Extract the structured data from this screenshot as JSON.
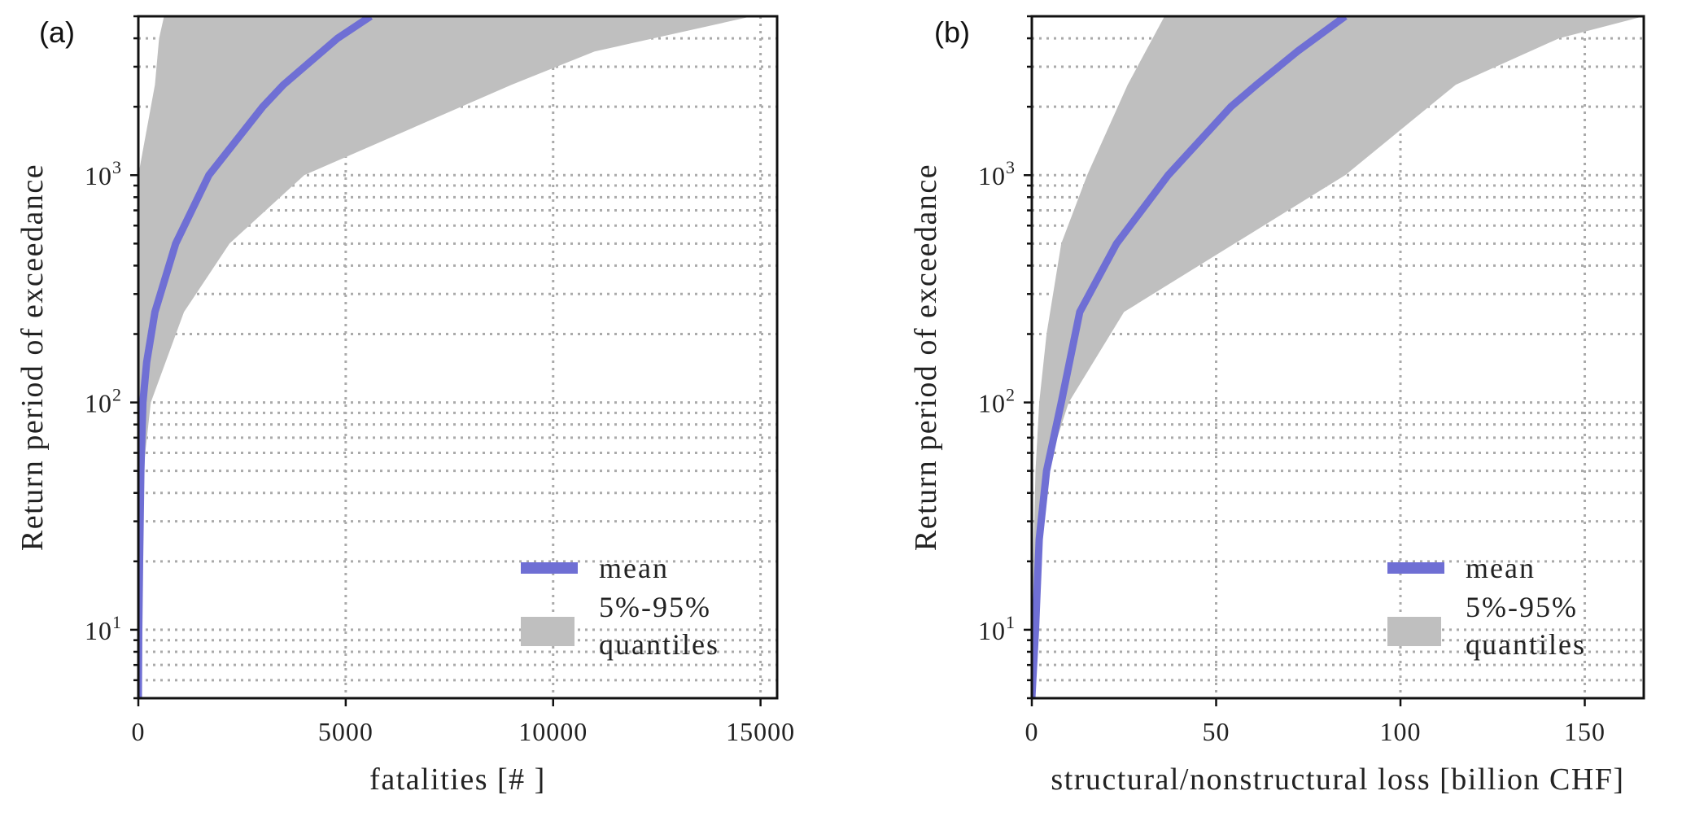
{
  "chart_data": [
    {
      "type": "line",
      "panel_label": "(a)",
      "xlabel": "fatalities [# ]",
      "ylabel": "Return period of exceedance",
      "xlim": [
        0,
        15400
      ],
      "ylim": [
        5,
        5000
      ],
      "yscale": "log",
      "grid": true,
      "x_ticks": [
        0,
        5000,
        10000,
        15000
      ],
      "x_tick_labels": [
        "0",
        "5000",
        "10000",
        "15000"
      ],
      "y_ticks": [
        10,
        100,
        1000
      ],
      "y_tick_base": "10",
      "y_tick_exponents": [
        "1",
        "2",
        "3"
      ],
      "legend_position": "lower-right",
      "series": [
        {
          "name": "mean",
          "color": "#6f6fd4",
          "x": [
            0,
            10,
            30,
            60,
            110,
            200,
            400,
            900,
            1700,
            3000,
            3500,
            4800,
            5600
          ],
          "y": [
            5,
            10,
            20,
            50,
            100,
            150,
            250,
            500,
            1000,
            2000,
            2500,
            4000,
            5000
          ]
        }
      ],
      "band": {
        "name": "5%-95% quantiles",
        "line1": "5%-95%",
        "line2": "quantiles",
        "color": "#bfbfbf",
        "upper": [
          [
            0,
            5
          ],
          [
            0,
            10
          ],
          [
            0,
            50
          ],
          [
            0,
            100
          ],
          [
            0,
            200
          ],
          [
            0,
            500
          ],
          [
            0,
            1000
          ],
          [
            400,
            2500
          ],
          [
            500,
            4000
          ],
          [
            620,
            5000
          ]
        ],
        "lower": [
          [
            0,
            5
          ],
          [
            40,
            10
          ],
          [
            120,
            50
          ],
          [
            300,
            100
          ],
          [
            1100,
            250
          ],
          [
            2200,
            500
          ],
          [
            4000,
            1000
          ],
          [
            9000,
            2500
          ],
          [
            11000,
            3500
          ],
          [
            14800,
            5000
          ]
        ]
      }
    },
    {
      "type": "line",
      "panel_label": "(b)",
      "xlabel": "structural/nonstructural loss [billion CHF]",
      "ylabel": "Return period of exceedance",
      "xlim": [
        0,
        166
      ],
      "ylim": [
        5,
        5000
      ],
      "yscale": "log",
      "grid": true,
      "x_ticks": [
        0,
        50,
        100,
        150
      ],
      "x_tick_labels": [
        "0",
        "50",
        "100",
        "150"
      ],
      "y_ticks": [
        10,
        100,
        1000
      ],
      "y_tick_base": "10",
      "y_tick_exponents": [
        "1",
        "2",
        "3"
      ],
      "legend_position": "lower-right",
      "series": [
        {
          "name": "mean",
          "color": "#6f6fd4",
          "x": [
            0,
            1,
            2,
            4,
            8,
            13,
            23,
            37,
            54,
            61,
            72,
            85
          ],
          "y": [
            5,
            10,
            25,
            50,
            100,
            250,
            500,
            1000,
            2000,
            2500,
            3500,
            5000
          ]
        }
      ],
      "band": {
        "name": "5%-95% quantiles",
        "line1": "5%-95%",
        "line2": "quantiles",
        "color": "#bfbfbf",
        "upper": [
          [
            0,
            5
          ],
          [
            0,
            10
          ],
          [
            1,
            50
          ],
          [
            2,
            100
          ],
          [
            4,
            200
          ],
          [
            8,
            500
          ],
          [
            15,
            1000
          ],
          [
            26,
            2500
          ],
          [
            36,
            5000
          ]
        ],
        "lower": [
          [
            0,
            5
          ],
          [
            1,
            10
          ],
          [
            4,
            50
          ],
          [
            10,
            100
          ],
          [
            25,
            250
          ],
          [
            55,
            500
          ],
          [
            85,
            1000
          ],
          [
            115,
            2500
          ],
          [
            143,
            4000
          ],
          [
            166,
            5000
          ]
        ]
      }
    }
  ]
}
